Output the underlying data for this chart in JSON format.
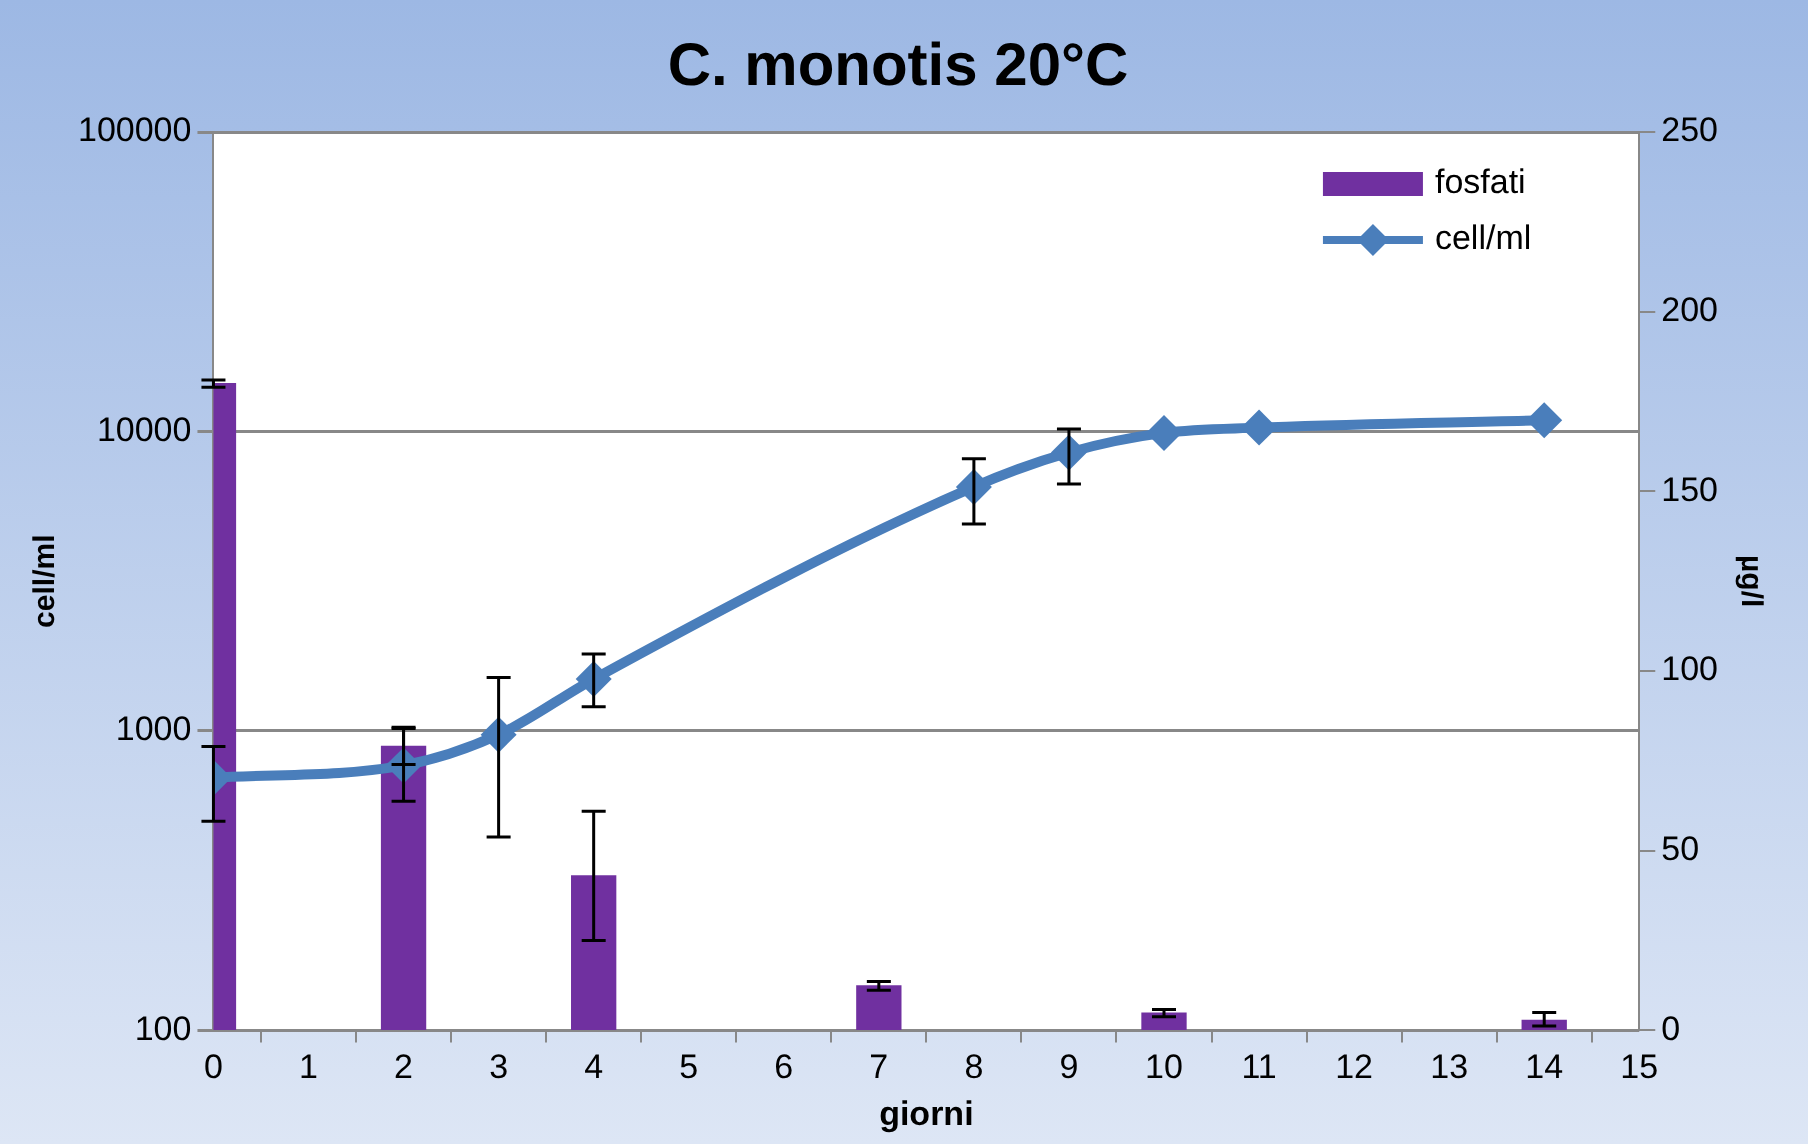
{
  "chart_data": {
    "type": "line",
    "title": "C. monotis 20°C",
    "xlabel": "giorni",
    "ylabel": "cell/ml",
    "y2label": "µg/l",
    "series": [
      {
        "name": "fosfati",
        "type": "bar",
        "axis": "y2",
        "color": "#7030a0",
        "x": [
          0,
          2,
          4,
          7,
          10,
          14
        ],
        "values": [
          180,
          79,
          43,
          12.4,
          4.8,
          2.8
        ],
        "errors": [
          1,
          5,
          18,
          1.2,
          1,
          [
            1.2,
            5
          ]
        ]
      },
      {
        "name": "cell/ml",
        "color": "#4a7ebb",
        "x": [
          0,
          2,
          3,
          4,
          8,
          9,
          10,
          11,
          14
        ],
        "values": [
          698,
          767,
          972,
          1490,
          6530,
          8510,
          9890,
          10300,
          10900
        ],
        "errors": [
          [
            499,
            888
          ],
          [
            582,
            1028
          ],
          [
            442,
            1507
          ],
          [
            1205,
            1807
          ],
          [
            4910,
            8110
          ],
          [
            6680,
            10200
          ],
          null,
          null,
          null
        ]
      }
    ],
    "log": "y",
    "xlim": [
      0,
      15
    ],
    "xticks": [
      0,
      1,
      2,
      3,
      4,
      5,
      6,
      7,
      8,
      9,
      10,
      11,
      12,
      13,
      14,
      15
    ],
    "ylim": [
      100,
      100000
    ],
    "yticks": [
      100,
      1000,
      10000,
      100000
    ],
    "y2lim": [
      0,
      250
    ],
    "y2ticks": [
      0,
      50,
      100,
      150,
      200,
      250
    ],
    "grid": "y",
    "legend": "top right",
    "marker": "diamond",
    "line_style": "solid"
  }
}
